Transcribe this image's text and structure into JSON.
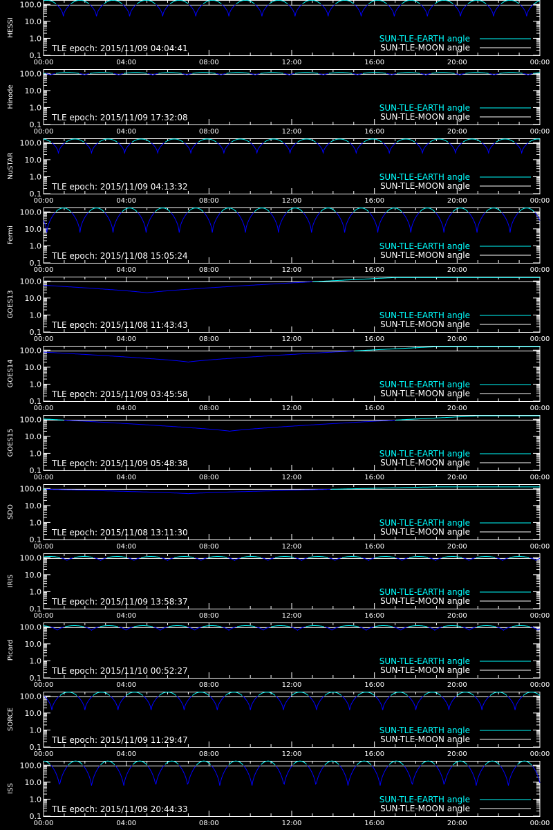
{
  "colors": {
    "background": "#000000",
    "axes": "#ffffff",
    "earth_angle": "#00ffff",
    "moon_angle": "#ffffff",
    "blue_curve": "#0000ff"
  },
  "legend": {
    "earth_label": "SUN-TLE-EARTH angle",
    "moon_label": "SUN-TLE-MOON angle"
  },
  "chart_data": {
    "type": "line",
    "x_tick_labels": [
      "00:00",
      "04:00",
      "08:00",
      "12:00",
      "16:00",
      "20:00",
      "00:00"
    ],
    "x_range_hours": [
      0,
      24
    ],
    "y_scale": "log",
    "y_range": [
      0.1,
      180
    ],
    "y_tick_labels": [
      "100.0",
      "10.0",
      "1.0",
      "0.1"
    ],
    "legend_position": "bottom-right",
    "panels": [
      {
        "name": "HESSI",
        "epoch": "TLE epoch: 2015/11/09 04:04:41",
        "model": "periodic",
        "period": 1.6,
        "phase": 0.4,
        "min": 20,
        "max": 175,
        "cyan_threshold": 100
      },
      {
        "name": "Hinode",
        "epoch": "TLE epoch: 2015/11/09 17:32:08",
        "model": "periodic",
        "period": 1.65,
        "phase": 0.8,
        "min": 80,
        "max": 115,
        "cyan_threshold": 100
      },
      {
        "name": "NuSTAR",
        "epoch": "TLE epoch: 2015/11/09 04:13:32",
        "model": "periodic",
        "period": 1.6,
        "phase": 0.55,
        "min": 25,
        "max": 165,
        "cyan_threshold": 100
      },
      {
        "name": "Fermi",
        "epoch": "TLE epoch: 2015/11/08 15:05:24",
        "model": "periodic",
        "period": 1.6,
        "phase": 0.9,
        "min": 6,
        "max": 170,
        "cyan_threshold": 100
      },
      {
        "name": "GOES13",
        "epoch": "TLE epoch: 2015/11/08 11:43:43",
        "model": "slow",
        "min_at": 5.0,
        "min": 20,
        "max": 160,
        "cyan_threshold": 90
      },
      {
        "name": "GOES14",
        "epoch": "TLE epoch: 2015/11/09 03:45:58",
        "model": "slow",
        "min_at": 7.0,
        "min": 20,
        "max": 160,
        "cyan_threshold": 90
      },
      {
        "name": "GOES15",
        "epoch": "TLE epoch: 2015/11/09 05:48:38",
        "model": "slow",
        "min_at": 9.0,
        "min": 20,
        "max": 160,
        "cyan_threshold": 90
      },
      {
        "name": "SDO",
        "epoch": "TLE epoch: 2015/11/08 13:11:30",
        "model": "slow",
        "min_at": 7.0,
        "min": 50,
        "max": 125,
        "cyan_threshold": 90
      },
      {
        "name": "IRIS",
        "epoch": "TLE epoch: 2015/11/09 13:58:37",
        "model": "periodic",
        "period": 1.62,
        "phase": 0.3,
        "min": 65,
        "max": 118,
        "cyan_threshold": 100
      },
      {
        "name": "Picard",
        "epoch": "TLE epoch: 2015/11/10 00:52:27",
        "model": "periodic",
        "period": 1.66,
        "phase": 0.6,
        "min": 60,
        "max": 118,
        "cyan_threshold": 100
      },
      {
        "name": "SORCE",
        "epoch": "TLE epoch: 2015/11/09 11:29:47",
        "model": "periodic",
        "period": 1.6,
        "phase": 0.75,
        "min": 15,
        "max": 170,
        "cyan_threshold": 100
      },
      {
        "name": "ISS",
        "epoch": "TLE epoch: 2015/11/09 20:44:33",
        "model": "periodic",
        "period": 1.55,
        "phase": 0.5,
        "min": 5,
        "max": 175,
        "cyan_threshold": 100
      }
    ]
  }
}
